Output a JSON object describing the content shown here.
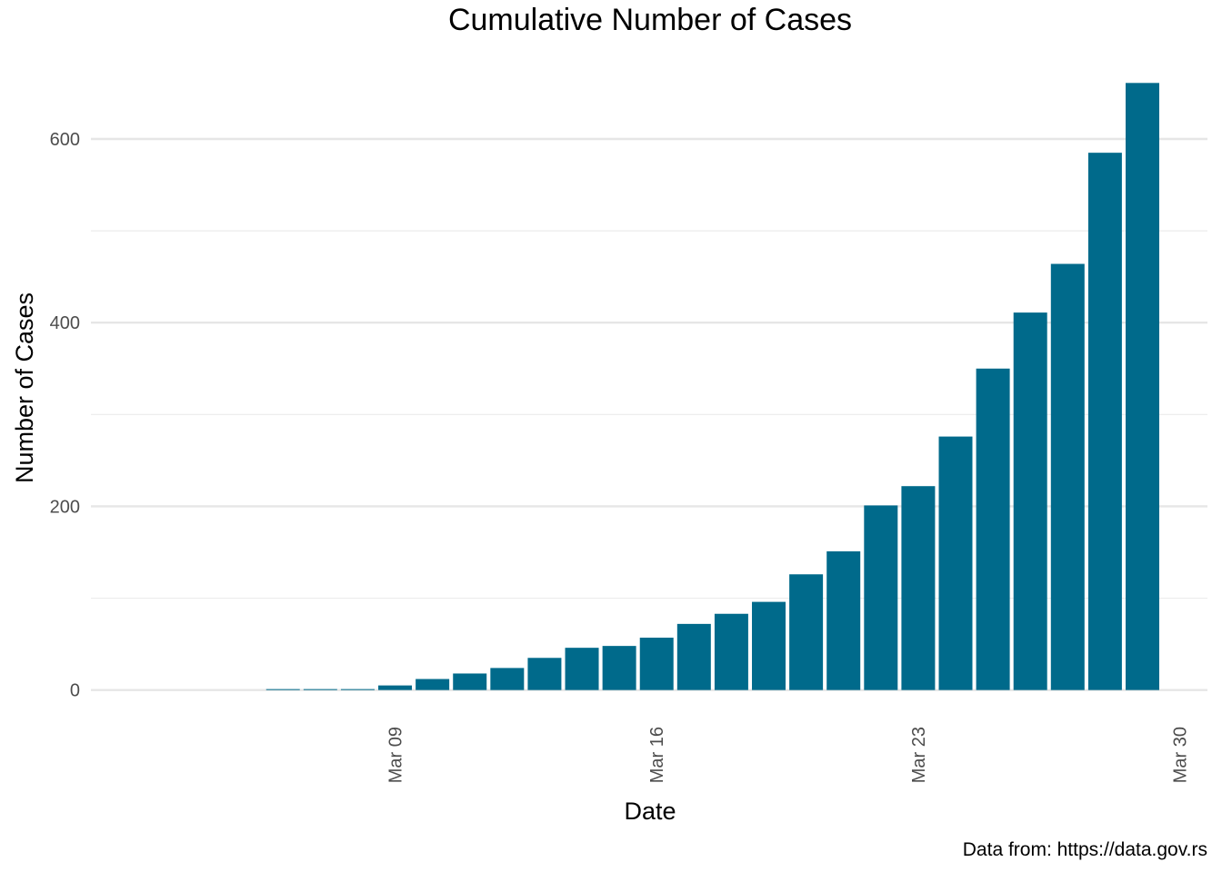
{
  "chart_data": {
    "type": "bar",
    "title": "Cumulative Number of Cases",
    "xlabel": "Date",
    "ylabel": "Number of Cases",
    "caption": "Data from: https://data.gov.rs",
    "x_range": [
      "2020-03-02",
      "2020-03-30"
    ],
    "ylim": [
      -30,
      690
    ],
    "y_ticks": [
      0,
      200,
      400,
      600
    ],
    "y_tick_labels": [
      "0",
      "200",
      "400",
      "600"
    ],
    "x_ticks": [
      "2020-03-09",
      "2020-03-16",
      "2020-03-23",
      "2020-03-30"
    ],
    "x_tick_labels": [
      "Mar 09",
      "Mar 16",
      "Mar 23",
      "Mar 30"
    ],
    "grid": true,
    "legend": "none",
    "bar_color": "#006A8B",
    "x": [
      "2020-03-06",
      "2020-03-07",
      "2020-03-08",
      "2020-03-09",
      "2020-03-10",
      "2020-03-11",
      "2020-03-12",
      "2020-03-13",
      "2020-03-14",
      "2020-03-15",
      "2020-03-16",
      "2020-03-17",
      "2020-03-18",
      "2020-03-19",
      "2020-03-20",
      "2020-03-21",
      "2020-03-22",
      "2020-03-23",
      "2020-03-24",
      "2020-03-25",
      "2020-03-26",
      "2020-03-27",
      "2020-03-28",
      "2020-03-29"
    ],
    "values": [
      1,
      1,
      1,
      5,
      12,
      18,
      24,
      35,
      46,
      48,
      57,
      72,
      83,
      96,
      126,
      151,
      201,
      222,
      276,
      350,
      411,
      464,
      585,
      661
    ]
  }
}
